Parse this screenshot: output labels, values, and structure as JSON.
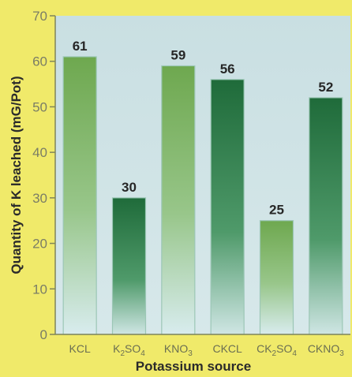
{
  "colors": {
    "frame_yellow": "#f0ea6a",
    "plot_bg": "#cfe3e6",
    "axis": "#8a8f60",
    "bar_light_green": "#7cb25e",
    "bar_dark_green": "#2f7d48"
  },
  "chart_data": {
    "type": "bar",
    "title": "",
    "xlabel": "Potassium source",
    "ylabel": "Quantity of K leached (mG/Pot)",
    "ylim": [
      0,
      70
    ],
    "yticks": [
      0,
      10,
      20,
      30,
      40,
      50,
      60,
      70
    ],
    "grid": false,
    "categories": [
      {
        "base": "KCL",
        "sub": "",
        "tail": ""
      },
      {
        "base": "K",
        "sub": "2",
        "tail": "SO",
        "sub2": "4"
      },
      {
        "base": "KNO",
        "sub": "3",
        "tail": ""
      },
      {
        "base": "CKCL",
        "sub": "",
        "tail": ""
      },
      {
        "base": "CK",
        "sub": "2",
        "tail": "SO",
        "sub2": "4"
      },
      {
        "base": "CKNO",
        "sub": "3",
        "tail": ""
      }
    ],
    "values": [
      61,
      30,
      59,
      56,
      25,
      52
    ],
    "data_labels": [
      "61",
      "30",
      "59",
      "56",
      "25",
      "52"
    ],
    "bar_tone": [
      "light",
      "dark",
      "light",
      "dark",
      "light",
      "dark"
    ]
  }
}
